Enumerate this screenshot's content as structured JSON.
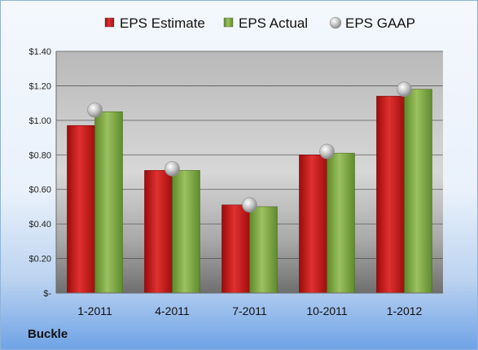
{
  "company": "Buckle",
  "chart_data": {
    "type": "bar",
    "categories": [
      "1-2011",
      "4-2011",
      "7-2011",
      "10-2011",
      "1-2012"
    ],
    "series": [
      {
        "name": "EPS Estimate",
        "type": "bar",
        "color": "#cc1111",
        "values": [
          0.97,
          0.71,
          0.51,
          0.8,
          1.14
        ]
      },
      {
        "name": "EPS Actual",
        "type": "bar",
        "color": "#77a33a",
        "values": [
          1.05,
          0.71,
          0.5,
          0.81,
          1.18
        ]
      },
      {
        "name": "EPS GAAP",
        "type": "scatter",
        "color": "#b0b0b0",
        "values": [
          1.06,
          0.72,
          0.51,
          0.82,
          1.18
        ]
      }
    ],
    "yticks": [
      "$-",
      "$0.20",
      "$0.40",
      "$0.60",
      "$0.80",
      "$1.00",
      "$1.20",
      "$1.40"
    ],
    "ylim": [
      0,
      1.4
    ],
    "ystep": 0.2,
    "legend_position": "top",
    "grid": true
  }
}
